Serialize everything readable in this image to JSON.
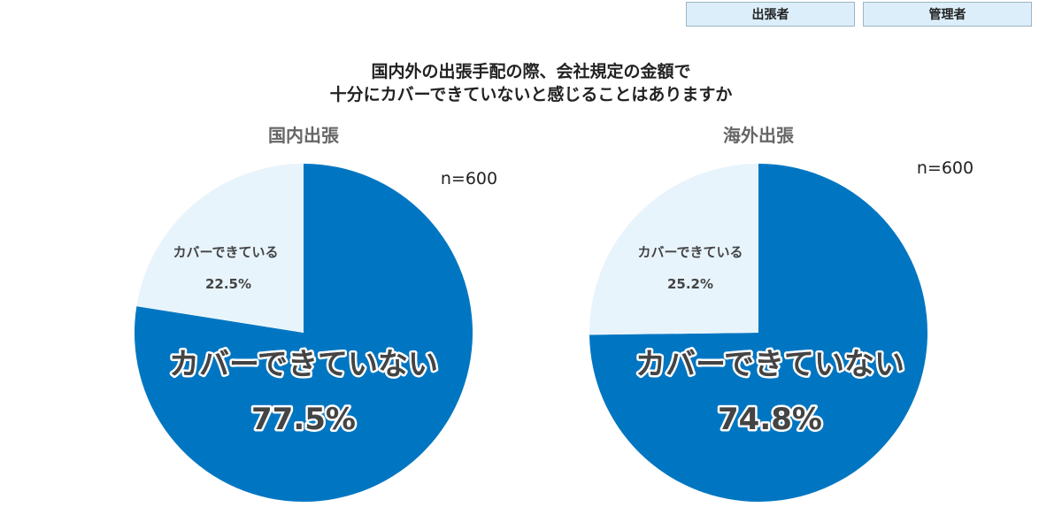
{
  "tabs": [
    "出張者",
    "管理者"
  ],
  "title": {
    "line1": "国内外の出張手配の際、会社規定の金額で",
    "line2": "十分にカバーできていないと感じることはありますか"
  },
  "colors": {
    "dark_slice": "#0076c2",
    "light_slice": "#e8f4fc"
  },
  "chart_data": [
    {
      "type": "pie",
      "title": "国内出張",
      "n_label": "n=600",
      "slices": [
        {
          "label": "カバーできていない",
          "value": 77.5,
          "value_label": "77.5%"
        },
        {
          "label": "カバーできている",
          "value": 22.5,
          "value_label": "22.5%"
        }
      ]
    },
    {
      "type": "pie",
      "title": "海外出張",
      "n_label": "n=600",
      "slices": [
        {
          "label": "カバーできていない",
          "value": 74.8,
          "value_label": "74.8%"
        },
        {
          "label": "カバーできている",
          "value": 25.2,
          "value_label": "25.2%"
        }
      ]
    }
  ]
}
